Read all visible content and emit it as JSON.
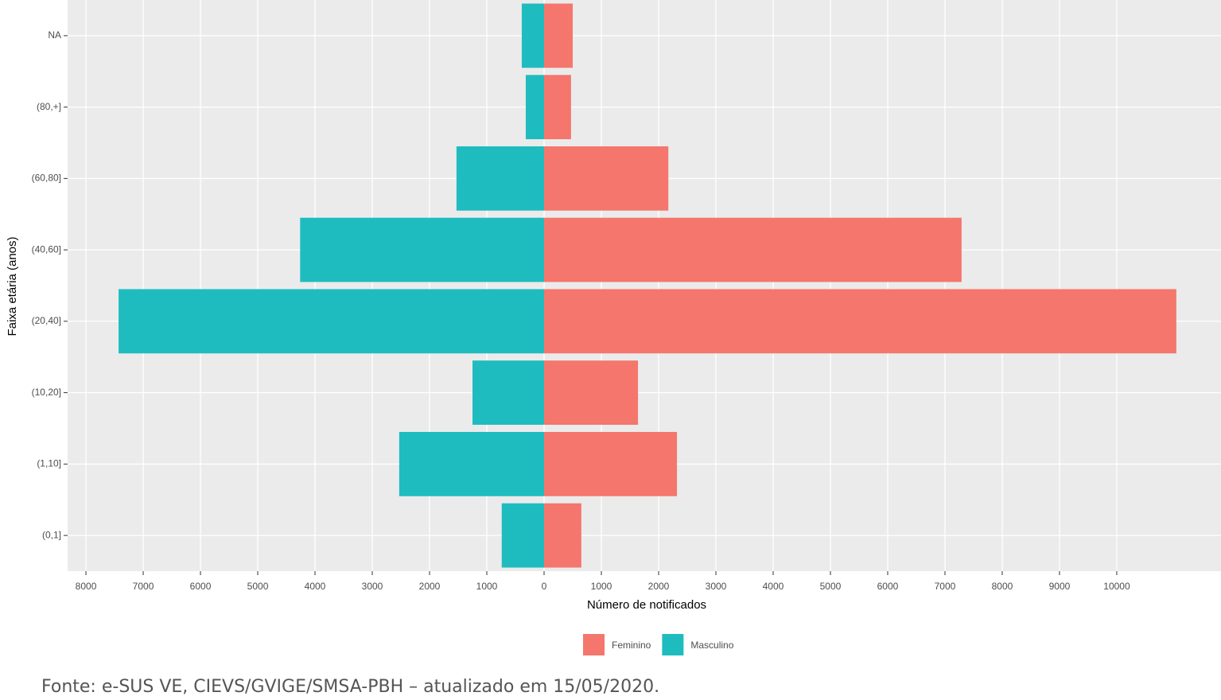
{
  "chart_data": {
    "type": "pyramid",
    "orientation": "horizontal",
    "x_label": "Número de notificados",
    "y_label": "Faixa etária (anos)",
    "categories": [
      "(0,1]",
      "(1,10]",
      "(10,20]",
      "(20,40]",
      "(40,60]",
      "(60,80]",
      "(80,+]",
      "NA"
    ],
    "series": [
      {
        "name": "Feminino",
        "color": "#f4766d",
        "values": [
          650,
          2320,
          1640,
          11040,
          7290,
          2170,
          470,
          500
        ]
      },
      {
        "name": "Masculino",
        "color": "#1fbcbf",
        "values": [
          -740,
          -2530,
          -1250,
          -7430,
          -4260,
          -1530,
          -320,
          -390
        ]
      }
    ],
    "xlim": [
      -8320,
      11820
    ],
    "xticks": [
      {
        "value": -8000,
        "label": "8000"
      },
      {
        "value": -7000,
        "label": "7000"
      },
      {
        "value": -6000,
        "label": "6000"
      },
      {
        "value": -5000,
        "label": "5000"
      },
      {
        "value": -4000,
        "label": "4000"
      },
      {
        "value": -3000,
        "label": "3000"
      },
      {
        "value": -2000,
        "label": "2000"
      },
      {
        "value": -1000,
        "label": "1000"
      },
      0,
      1000,
      2000,
      3000,
      4000,
      5000,
      6000,
      7000,
      8000,
      9000,
      10000
    ],
    "grid": true,
    "legend": "bottom",
    "source": "Fonte: e-SUS VE, CIEVS/GVIGE/SMSA-PBH – atualizado em 15/05/2020."
  }
}
